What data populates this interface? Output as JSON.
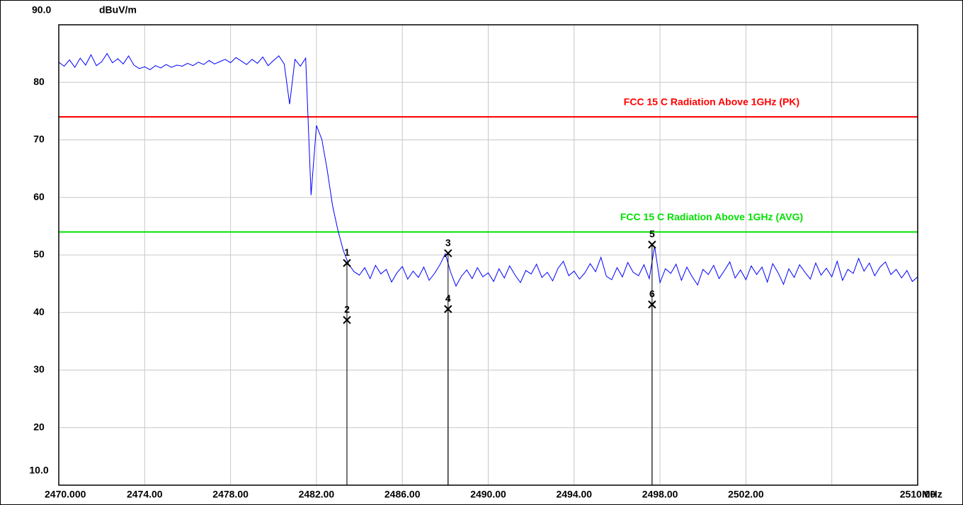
{
  "chart_data": {
    "type": "line",
    "y_unit": "dBuV/m",
    "x_unit": "MHz",
    "xlim": [
      2470,
      2510
    ],
    "ylim": [
      10,
      90
    ],
    "xticks": [
      {
        "value": 2470,
        "label": "2470.000"
      },
      {
        "value": 2474,
        "label": "2474.00"
      },
      {
        "value": 2478,
        "label": "2478.00"
      },
      {
        "value": 2482,
        "label": "2482.00"
      },
      {
        "value": 2486,
        "label": "2486.00"
      },
      {
        "value": 2490,
        "label": "2490.00"
      },
      {
        "value": 2494,
        "label": "2494.00"
      },
      {
        "value": 2498,
        "label": "2498.00"
      },
      {
        "value": 2502,
        "label": "2502.00"
      },
      {
        "value": 2506
      },
      {
        "value": 2510,
        "label": "2510.00"
      }
    ],
    "yticks": [
      {
        "value": 10,
        "label": "10.0"
      },
      20,
      30,
      40,
      50,
      60,
      70,
      80,
      {
        "value": 90,
        "label": "90.0"
      }
    ],
    "grid": true,
    "limits": [
      {
        "name": "FCC 15 C Radiation Above 1GHz (PK)",
        "value": 74,
        "color": "#ff0000"
      },
      {
        "name": "FCC 15 C Radiation Above 1GHz (AVG)",
        "value": 54,
        "color": "#00e000"
      }
    ],
    "markers": [
      {
        "label": "1",
        "x": 2483.42,
        "y": 48.6
      },
      {
        "label": "2",
        "x": 2483.42,
        "y": 38.7
      },
      {
        "label": "3",
        "x": 2488.13,
        "y": 50.3
      },
      {
        "label": "4",
        "x": 2488.13,
        "y": 40.6
      },
      {
        "label": "5",
        "x": 2497.63,
        "y": 51.8
      },
      {
        "label": "6",
        "x": 2497.63,
        "y": 41.4
      }
    ],
    "series": [
      {
        "color": "#0000ff",
        "x": [
          2470,
          2470.25,
          2470.5,
          2470.75,
          2471,
          2471.25,
          2471.5,
          2471.75,
          2472,
          2472.25,
          2472.5,
          2472.75,
          2473,
          2473.25,
          2473.5,
          2473.75,
          2474,
          2474.25,
          2474.5,
          2474.75,
          2475,
          2475.25,
          2475.5,
          2475.75,
          2476,
          2476.25,
          2476.5,
          2476.75,
          2477,
          2477.25,
          2477.5,
          2477.75,
          2478,
          2478.25,
          2478.5,
          2478.75,
          2479,
          2479.25,
          2479.5,
          2479.75,
          2480,
          2480.25,
          2480.5,
          2480.75,
          2481,
          2481.25,
          2481.5,
          2481.75,
          2482,
          2482.25,
          2482.5,
          2482.75,
          2483,
          2483.25,
          2483.5,
          2483.75,
          2484,
          2484.25,
          2484.5,
          2484.75,
          2485,
          2485.25,
          2485.5,
          2485.75,
          2486,
          2486.25,
          2486.5,
          2486.75,
          2487,
          2487.25,
          2487.5,
          2487.75,
          2488,
          2488.25,
          2488.5,
          2488.75,
          2489,
          2489.25,
          2489.5,
          2489.75,
          2490,
          2490.25,
          2490.5,
          2490.75,
          2491,
          2491.25,
          2491.5,
          2491.75,
          2492,
          2492.25,
          2492.5,
          2492.75,
          2493,
          2493.25,
          2493.5,
          2493.75,
          2494,
          2494.25,
          2494.5,
          2494.75,
          2495,
          2495.25,
          2495.5,
          2495.75,
          2496,
          2496.25,
          2496.5,
          2496.75,
          2497,
          2497.25,
          2497.5,
          2497.75,
          2498,
          2498.25,
          2498.5,
          2498.75,
          2499,
          2499.25,
          2499.5,
          2499.75,
          2500,
          2500.25,
          2500.5,
          2500.75,
          2501,
          2501.25,
          2501.5,
          2501.75,
          2502,
          2502.25,
          2502.5,
          2502.75,
          2503,
          2503.25,
          2503.5,
          2503.75,
          2504,
          2504.25,
          2504.5,
          2504.75,
          2505,
          2505.25,
          2505.5,
          2505.75,
          2506,
          2506.25,
          2506.5,
          2506.75,
          2507,
          2507.25,
          2507.5,
          2507.75,
          2508,
          2508.25,
          2508.5,
          2508.75,
          2509,
          2509.25,
          2509.5,
          2509.75,
          2510
        ],
        "values": [
          83.5,
          82.8,
          83.9,
          82.6,
          84.2,
          83.0,
          84.8,
          82.9,
          83.6,
          85.0,
          83.4,
          84.1,
          83.2,
          84.6,
          83.0,
          82.4,
          82.7,
          82.2,
          82.9,
          82.5,
          83.1,
          82.6,
          83.0,
          82.8,
          83.3,
          82.9,
          83.5,
          83.1,
          83.8,
          83.2,
          83.6,
          84.0,
          83.4,
          84.3,
          83.7,
          83.1,
          84.0,
          83.3,
          84.4,
          82.9,
          83.8,
          84.6,
          83.2,
          76.2,
          84.0,
          82.8,
          84.2,
          60.4,
          72.5,
          70.1,
          64.8,
          58.6,
          54.3,
          50.8,
          48.4,
          47.1,
          46.5,
          47.8,
          45.9,
          48.2,
          46.7,
          47.5,
          45.3,
          46.9,
          48.0,
          45.8,
          47.2,
          46.1,
          47.9,
          45.6,
          46.8,
          48.3,
          50.2,
          47.0,
          44.6,
          46.3,
          47.4,
          45.9,
          47.8,
          46.2,
          46.9,
          45.4,
          47.6,
          46.0,
          48.1,
          46.5,
          45.2,
          47.3,
          46.7,
          48.4,
          46.1,
          47.0,
          45.5,
          47.7,
          48.9,
          46.4,
          47.2,
          45.8,
          46.9,
          48.5,
          47.1,
          49.6,
          46.3,
          45.7,
          47.8,
          46.2,
          48.7,
          47.0,
          46.4,
          48.3,
          45.9,
          51.5,
          45.2,
          47.6,
          46.8,
          48.4,
          45.6,
          47.9,
          46.2,
          44.8,
          47.5,
          46.6,
          48.2,
          45.9,
          47.3,
          48.8,
          46.0,
          47.4,
          45.7,
          48.1,
          46.6,
          47.9,
          45.3,
          48.5,
          46.9,
          44.9,
          47.6,
          46.1,
          48.3,
          47.0,
          45.8,
          48.6,
          46.5,
          47.7,
          46.2,
          48.9,
          45.6,
          47.5,
          46.8,
          49.4,
          47.2,
          48.6,
          46.4,
          47.9,
          48.8,
          46.6,
          47.5,
          46.0,
          47.3,
          45.4,
          46.2
        ]
      }
    ]
  }
}
